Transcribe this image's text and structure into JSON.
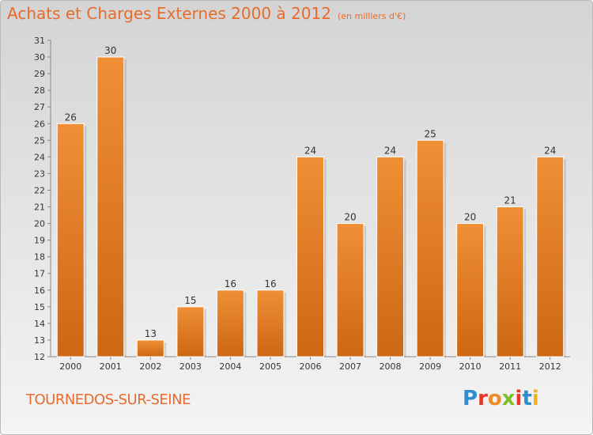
{
  "header": {
    "title": "Achats et Charges Externes 2000 à 2012",
    "subtitle": "(en milliers d'€)"
  },
  "footer": {
    "commune": "TOURNEDOS-SUR-SEINE",
    "logo": "Proxiti",
    "logo_colors": [
      "#2e8fd0",
      "#e8362b",
      "#f08a22",
      "#7bbf2a",
      "#e8362b",
      "#2e8fd0",
      "#f0b51e"
    ]
  },
  "chart_data": {
    "type": "bar",
    "categories": [
      "2000",
      "2001",
      "2002",
      "2003",
      "2004",
      "2005",
      "2006",
      "2007",
      "2008",
      "2009",
      "2010",
      "2011",
      "2012"
    ],
    "values": [
      26,
      30,
      13,
      15,
      16,
      16,
      24,
      20,
      24,
      25,
      20,
      21,
      24
    ],
    "title": "Achats et Charges Externes 2000 à 2012",
    "subtitle": "(en milliers d'€)",
    "xlabel": "",
    "ylabel": "",
    "ylim": [
      12,
      31
    ],
    "yticks": [
      12,
      13,
      14,
      15,
      16,
      17,
      18,
      19,
      20,
      21,
      22,
      23,
      24,
      25,
      26,
      27,
      28,
      29,
      30,
      31
    ],
    "grid": false,
    "bar_color": "#f08f36",
    "bar_color_dark": "#cc6712"
  }
}
